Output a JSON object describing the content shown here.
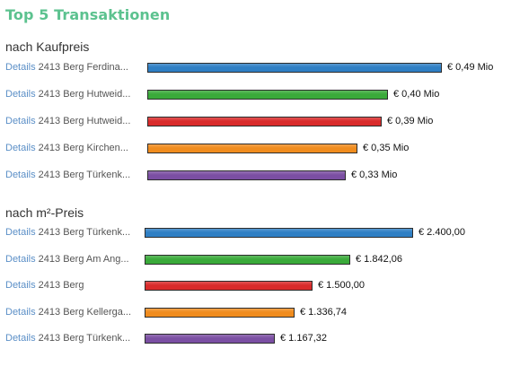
{
  "title": "Top 5 Transaktionen",
  "details_label": "Details",
  "colors": [
    "#2f7fc4",
    "#3aaa3a",
    "#d92b2b",
    "#f08c1e",
    "#7b4fa3"
  ],
  "chart_data": [
    {
      "type": "bar",
      "orientation": "horizontal",
      "title": "nach Kaufpreis",
      "unit": "€ Mio",
      "categories": [
        "2413 Berg Ferdina...",
        "2413 Berg Hutweid...",
        "2413 Berg Hutweid...",
        "2413 Berg Kirchen...",
        "2413 Berg Türkenk..."
      ],
      "values": [
        0.49,
        0.4,
        0.39,
        0.35,
        0.33
      ],
      "value_labels": [
        "€ 0,49 Mio",
        "€ 0,40 Mio",
        "€ 0,39 Mio",
        "€ 0,35 Mio",
        "€ 0,33 Mio"
      ],
      "xlim": [
        0,
        0.49
      ]
    },
    {
      "type": "bar",
      "orientation": "horizontal",
      "title": "nach m²-Preis",
      "unit": "€",
      "categories": [
        "2413 Berg Türkenk...",
        "2413 Berg Am Ang...",
        "2413 Berg",
        "2413 Berg Kellerga...",
        "2413 Berg Türkenk..."
      ],
      "values": [
        2400.0,
        1842.06,
        1500.0,
        1336.74,
        1167.32
      ],
      "value_labels": [
        "€ 2.400,00",
        "€ 1.842,06",
        "€ 1.500,00",
        "€ 1.336,74",
        "€ 1.167,32"
      ],
      "xlim": [
        0,
        2400
      ]
    }
  ]
}
